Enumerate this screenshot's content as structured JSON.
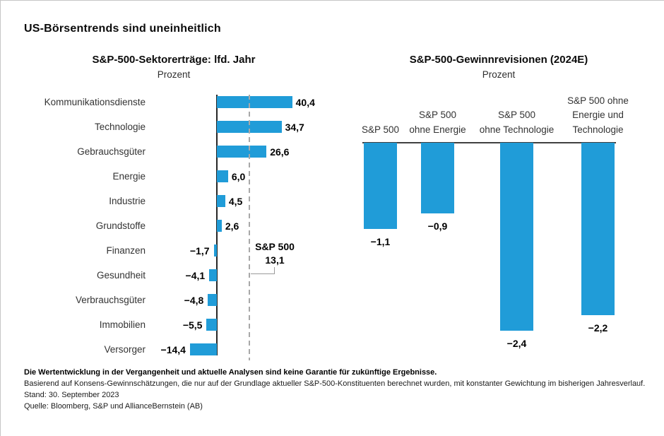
{
  "page": {
    "title": "US-Börsentrends sind uneinheitlich"
  },
  "chart_data": [
    {
      "type": "bar",
      "orientation": "horizontal",
      "title": "S&P-500-Sektorerträge: lfd. Jahr",
      "subtitle": "Prozent",
      "categories": [
        "Kommunikationsdienste",
        "Technologie",
        "Gebrauchsgüter",
        "Energie",
        "Industrie",
        "Grundstoffe",
        "Finanzen",
        "Gesundheit",
        "Verbrauchsgüter",
        "Immobilien",
        "Versorger"
      ],
      "values": [
        40.4,
        34.7,
        26.6,
        6.0,
        4.5,
        2.6,
        -1.7,
        -4.1,
        -4.8,
        -5.5,
        -14.4
      ],
      "value_labels": [
        "40,4",
        "34,7",
        "26,6",
        "6,0",
        "4,5",
        "2,6",
        "−1,7",
        "−4,1",
        "−4,8",
        "−5,5",
        "−14,4"
      ],
      "reference_line": {
        "label": "S&P 500",
        "value": 13.1,
        "value_label": "13,1",
        "style": "dashed"
      },
      "bar_color": "#209CD8",
      "xlim": [
        -20,
        45
      ],
      "grid": false,
      "legend": "none"
    },
    {
      "type": "bar",
      "orientation": "vertical",
      "title": "S&P-500-Gewinnrevisionen (2024E)",
      "subtitle": "Prozent",
      "categories": [
        "S&P 500",
        "S&P 500 ohne Energie",
        "S&P 500 ohne Technologie",
        "S&P 500 ohne Energie und Technologie"
      ],
      "category_lines": [
        [
          "S&P 500"
        ],
        [
          "S&P 500",
          "ohne Energie"
        ],
        [
          "S&P 500",
          "ohne Technologie"
        ],
        [
          "S&P 500 ohne",
          "Energie und",
          "Technologie"
        ]
      ],
      "values": [
        -1.1,
        -0.9,
        -2.4,
        -2.2
      ],
      "value_labels": [
        "−1,1",
        "−0,9",
        "−2,4",
        "−2,2"
      ],
      "bar_color": "#209CD8",
      "ylim": [
        -2.6,
        0
      ],
      "grid": false,
      "legend": "none"
    }
  ],
  "footer": {
    "disclaimer": "Die Wertentwicklung in der Vergangenheit und aktuelle Analysen sind keine Garantie für zukünftige Ergebnisse.",
    "note": "Basierend auf Konsens-Gewinnschätzungen, die nur auf der Grundlage aktueller S&P-500-Konstituenten berechnet wurden, mit konstanter Gewichtung im bisherigen Jahresverlauf.",
    "as_of": "Stand: 30. September 2023",
    "source": "Quelle: Bloomberg, S&P und AllianceBernstein (AB)"
  }
}
